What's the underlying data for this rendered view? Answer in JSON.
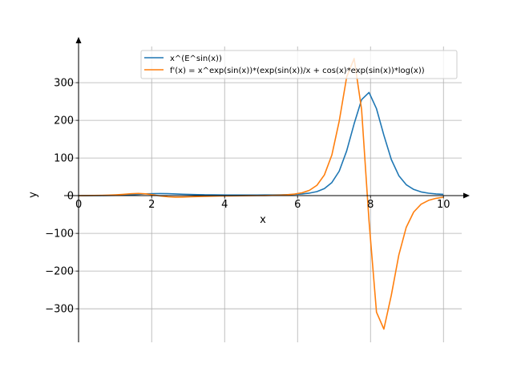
{
  "chart_data": {
    "type": "line",
    "title": "",
    "xlabel": "x",
    "ylabel": "y",
    "xlim": [
      -0.4,
      10.5
    ],
    "ylim": [
      -389,
      396
    ],
    "grid": true,
    "legend_position": "top-right",
    "x_ticks": [
      0,
      2,
      4,
      6,
      8,
      10
    ],
    "x_tick_labels": [
      "0",
      "2",
      "4",
      "6",
      "8",
      "10"
    ],
    "y_ticks": [
      -300,
      -200,
      -100,
      0,
      100,
      200,
      300
    ],
    "y_tick_labels": [
      "−300",
      "−200",
      "−100",
      "0",
      "100",
      "200",
      "300"
    ],
    "x": [
      0,
      0.204,
      0.408,
      0.612,
      0.816,
      1.02,
      1.224,
      1.429,
      1.633,
      1.837,
      2.041,
      2.245,
      2.449,
      2.653,
      2.857,
      3.061,
      3.265,
      3.469,
      3.673,
      3.878,
      4.082,
      4.286,
      4.49,
      4.694,
      4.898,
      5.102,
      5.306,
      5.51,
      5.714,
      5.918,
      6.122,
      6.327,
      6.531,
      6.735,
      6.939,
      7.143,
      7.347,
      7.551,
      7.755,
      7.959,
      8.163,
      8.367,
      8.571,
      8.776,
      8.98,
      9.184,
      9.388,
      9.592,
      9.796,
      10
    ],
    "series": [
      {
        "name": "x^(E^sin(x))",
        "color": "#1f77b4",
        "values": [
          0,
          0.14,
          0.26,
          0.42,
          0.66,
          1.05,
          1.68,
          2.61,
          3.78,
          4.93,
          5.7,
          5.85,
          5.45,
          4.76,
          4.01,
          3.36,
          2.85,
          2.46,
          2.19,
          2.0,
          1.87,
          1.8,
          1.76,
          1.77,
          1.81,
          1.91,
          2.07,
          2.34,
          2.76,
          3.46,
          4.68,
          6.88,
          11.0,
          19.1,
          35.0,
          65.2,
          119,
          191,
          255,
          274,
          231,
          160.5,
          96.0,
          53.1,
          29.3,
          16.7,
          10.2,
          6.78,
          4.88,
          3.8
        ]
      },
      {
        "name": "f'(x) = x^exp(sin(x))*(exp(sin(x))/x + cos(x)*exp(sin(x))*log(x))",
        "color": "#ff7f0e",
        "values": [
          0,
          0.59,
          0.64,
          0.92,
          1.48,
          2.43,
          3.81,
          5.27,
          5.97,
          4.97,
          2.34,
          -0.77,
          -2.91,
          -3.69,
          -3.49,
          -2.87,
          -2.18,
          -1.59,
          -1.13,
          -0.77,
          -0.49,
          -0.27,
          -0.07,
          0.12,
          0.34,
          0.62,
          1.01,
          1.63,
          2.64,
          4.41,
          7.78,
          14.4,
          27.7,
          55.1,
          108,
          198,
          315,
          364,
          229,
          -68,
          -309,
          -354,
          -264,
          -157,
          -84,
          -43.3,
          -22.5,
          -12.2,
          -6.9,
          -4.04
        ]
      }
    ]
  }
}
